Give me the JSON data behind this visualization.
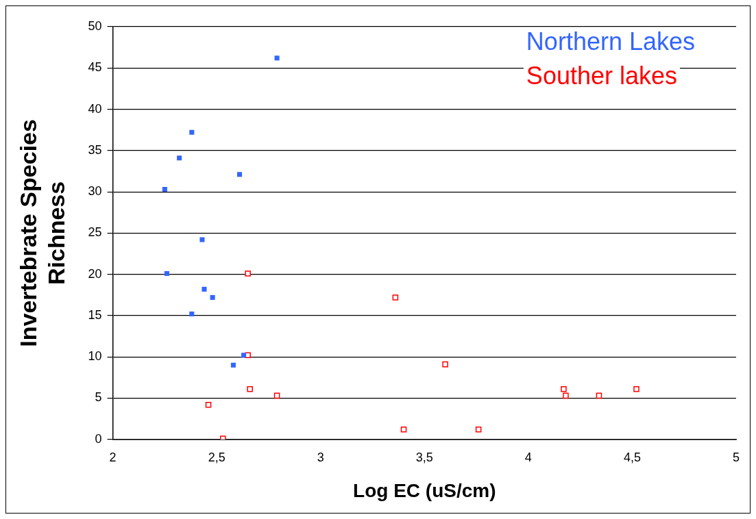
{
  "chart_data": {
    "type": "scatter",
    "xlabel": "Log EC (uS/cm)",
    "ylabel": "Invertebrate Species Richness",
    "xlim": [
      2,
      5
    ],
    "xticks": [
      2,
      {
        "value": 2.5,
        "label": "2,5"
      },
      3,
      {
        "value": 3.5,
        "label": "3,5"
      },
      4,
      {
        "value": 4.5,
        "label": "4,5"
      },
      5
    ],
    "ylim": [
      0,
      50
    ],
    "yticks": [
      0,
      5,
      10,
      15,
      20,
      25,
      30,
      35,
      40,
      45,
      50
    ],
    "grid": "y",
    "legend": "top right",
    "marker": "square",
    "series": [
      {
        "name": "Northern Lakes",
        "color": "#3366ff",
        "x": [
          2.79,
          2.38,
          2.32,
          2.61,
          2.25,
          2.43,
          2.26,
          2.44,
          2.48,
          2.38,
          2.63,
          2.58
        ],
        "values": [
          46.2,
          37.2,
          34.1,
          32.1,
          30.3,
          24.2,
          20.1,
          18.2,
          17.2,
          15.2,
          10.2,
          9.0
        ]
      },
      {
        "name": "Souther lakes",
        "color": "#ff0000",
        "x": [
          2.65,
          3.36,
          2.65,
          3.6,
          2.66,
          2.46,
          2.79,
          2.53,
          3.4,
          3.76,
          4.17,
          4.18,
          4.34,
          4.52
        ],
        "values": [
          20.1,
          17.2,
          10.2,
          9.1,
          6.1,
          4.2,
          5.3,
          0.1,
          1.2,
          1.2,
          6.1,
          5.3,
          5.3,
          6.1
        ]
      }
    ]
  }
}
